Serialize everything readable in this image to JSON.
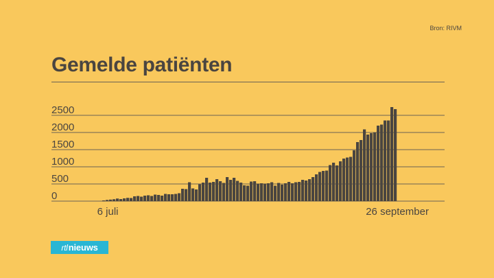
{
  "source": "Bron: RIVM",
  "title": "Gemelde patiënten",
  "logo": {
    "prefix": "rtl",
    "suffix": "nieuws"
  },
  "colors": {
    "background": "#f9c85c",
    "bar": "#4a4540",
    "grid": "#6b6255",
    "logo": "#29b6d4"
  },
  "chart_data": {
    "type": "bar",
    "title": "Gemelde patiënten",
    "xlabel": "",
    "ylabel": "",
    "ylim": [
      0,
      2750
    ],
    "yticks": [
      0,
      500,
      1000,
      1500,
      2000,
      2500
    ],
    "x_tick_labels": [
      {
        "label": "6 juli",
        "index": 0
      },
      {
        "label": "26 september",
        "index": 82
      }
    ],
    "values": [
      20,
      35,
      45,
      55,
      75,
      60,
      80,
      95,
      90,
      140,
      150,
      130,
      160,
      170,
      150,
      190,
      180,
      160,
      210,
      200,
      200,
      210,
      230,
      360,
      350,
      550,
      370,
      340,
      490,
      540,
      680,
      540,
      560,
      640,
      580,
      530,
      700,
      620,
      680,
      590,
      540,
      460,
      450,
      570,
      580,
      510,
      520,
      510,
      520,
      550,
      450,
      530,
      480,
      520,
      560,
      520,
      550,
      560,
      620,
      600,
      640,
      700,
      780,
      850,
      880,
      890,
      1050,
      1120,
      1040,
      1160,
      1240,
      1270,
      1290,
      1480,
      1720,
      1780,
      2090,
      1940,
      1980,
      2000,
      2200,
      2230,
      2350,
      2350,
      2740,
      2680
    ]
  }
}
